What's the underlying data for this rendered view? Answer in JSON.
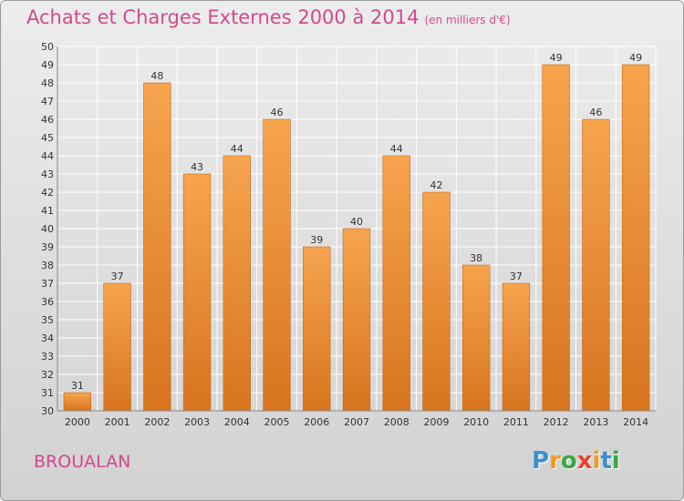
{
  "chart_data": {
    "type": "bar",
    "title": "Achats et Charges Externes 2000 à 2014",
    "subtitle": "(en milliers d'€)",
    "categories": [
      "2000",
      "2001",
      "2002",
      "2003",
      "2004",
      "2005",
      "2006",
      "2007",
      "2008",
      "2009",
      "2010",
      "2011",
      "2012",
      "2013",
      "2014"
    ],
    "values": [
      31,
      37,
      48,
      43,
      44,
      46,
      39,
      40,
      44,
      42,
      38,
      37,
      49,
      46,
      49
    ],
    "ylim": [
      30,
      50
    ],
    "yticks": [
      30,
      31,
      32,
      33,
      34,
      35,
      36,
      37,
      38,
      39,
      40,
      41,
      42,
      43,
      44,
      45,
      46,
      47,
      48,
      49,
      50
    ],
    "grid": true,
    "colors": {
      "bar_light": "#f7a44e",
      "bar_dark": "#d8741e",
      "bar_edge": "#c46a1a",
      "grid": "#ffffff"
    }
  },
  "footer": {
    "commune": "BROUALAN",
    "logo_letters": [
      "P",
      "r",
      "o",
      "x",
      "i",
      "t",
      "i"
    ],
    "logo_colors": [
      "#3a8fd0",
      "#f39a1e",
      "#3aa843",
      "#e8452c",
      "#f39a1e",
      "#3a8fd0",
      "#3aa843"
    ]
  }
}
